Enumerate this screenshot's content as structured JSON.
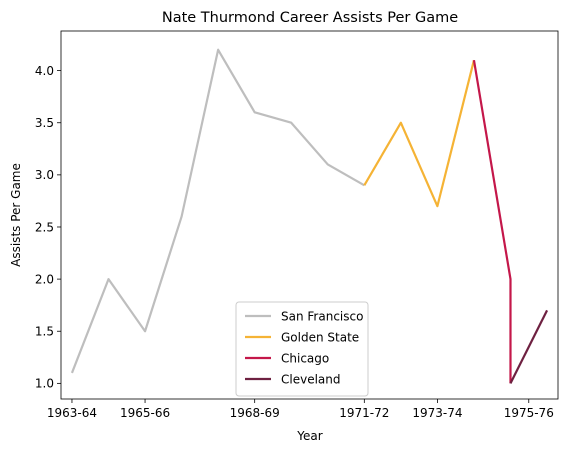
{
  "chart_data": {
    "type": "line",
    "title": "Nate Thurmond Career Assists Per Game",
    "xlabel": "Year",
    "ylabel": "Assists Per Game",
    "x_ticks": [
      "1963-64",
      "1965-66",
      "1968-69",
      "1971-72",
      "1973-74",
      "1975-76"
    ],
    "x_tick_positions": [
      0,
      2,
      5,
      8,
      10,
      12.5
    ],
    "xlim": [
      -0.3,
      13.3
    ],
    "ylim": [
      0.85,
      4.38
    ],
    "yticks": [
      1.0,
      1.5,
      2.0,
      2.5,
      3.0,
      3.5,
      4.0
    ],
    "grid": false,
    "legend_location": "lower center",
    "series": [
      {
        "name": "San Francisco",
        "color": "#bebebe",
        "x": [
          0,
          1,
          2,
          3,
          4,
          5,
          6,
          7,
          8
        ],
        "y": [
          1.1,
          2.0,
          1.5,
          2.6,
          4.2,
          3.6,
          3.5,
          3.1,
          2.9
        ]
      },
      {
        "name": "Golden State",
        "color": "#f5b335",
        "x": [
          8,
          9,
          10,
          11
        ],
        "y": [
          2.9,
          3.5,
          2.7,
          4.1
        ]
      },
      {
        "name": "Chicago",
        "color": "#c4174a",
        "x": [
          11,
          12,
          12
        ],
        "y": [
          4.1,
          2.0,
          1.0
        ]
      },
      {
        "name": "Cleveland",
        "color": "#6e2141",
        "x": [
          12,
          13
        ],
        "y": [
          1.0,
          1.7
        ]
      }
    ]
  }
}
